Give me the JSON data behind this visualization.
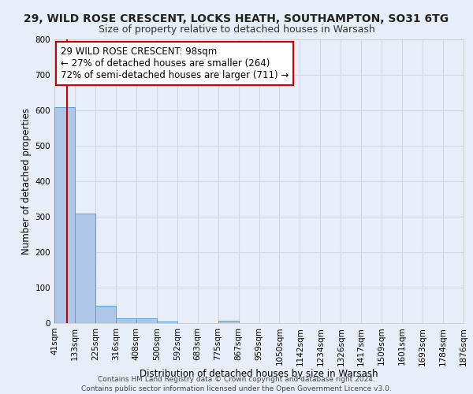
{
  "title": "29, WILD ROSE CRESCENT, LOCKS HEATH, SOUTHAMPTON, SO31 6TG",
  "subtitle": "Size of property relative to detached houses in Warsash",
  "xlabel": "Distribution of detached houses by size in Warsash",
  "ylabel": "Number of detached properties",
  "footer_lines": [
    "Contains HM Land Registry data © Crown copyright and database right 2024.",
    "Contains public sector information licensed under the Open Government Licence v3.0."
  ],
  "bin_labels": [
    "41sqm",
    "133sqm",
    "225sqm",
    "316sqm",
    "408sqm",
    "500sqm",
    "592sqm",
    "683sqm",
    "775sqm",
    "867sqm",
    "959sqm",
    "1050sqm",
    "1142sqm",
    "1234sqm",
    "1326sqm",
    "1417sqm",
    "1509sqm",
    "1601sqm",
    "1693sqm",
    "1784sqm",
    "1876sqm"
  ],
  "bin_edges": [
    41,
    133,
    225,
    316,
    408,
    500,
    592,
    683,
    775,
    867,
    959,
    1050,
    1142,
    1234,
    1326,
    1417,
    1509,
    1601,
    1693,
    1784,
    1876
  ],
  "bar_heights": [
    608,
    310,
    48,
    13,
    13,
    5,
    0,
    0,
    7,
    0,
    0,
    0,
    0,
    0,
    0,
    0,
    0,
    0,
    0,
    0
  ],
  "bar_color": "#aec6e8",
  "bar_edge_color": "#5a9fd4",
  "ylim": [
    0,
    800
  ],
  "yticks": [
    0,
    100,
    200,
    300,
    400,
    500,
    600,
    700,
    800
  ],
  "property_value": 98,
  "property_line_color": "#cc0000",
  "annotation_box_color": "#ffffff",
  "annotation_box_edge_color": "#cc0000",
  "annotation_text_line1": "29 WILD ROSE CRESCENT: 98sqm",
  "annotation_text_line2": "← 27% of detached houses are smaller (264)",
  "annotation_text_line3": "72% of semi-detached houses are larger (711) →",
  "bg_color": "#e8eef8",
  "grid_color": "#d0d8e8",
  "title_fontsize": 10,
  "subtitle_fontsize": 9,
  "axis_label_fontsize": 8.5,
  "tick_fontsize": 7.5,
  "annotation_fontsize": 8.5,
  "footer_fontsize": 6.5
}
